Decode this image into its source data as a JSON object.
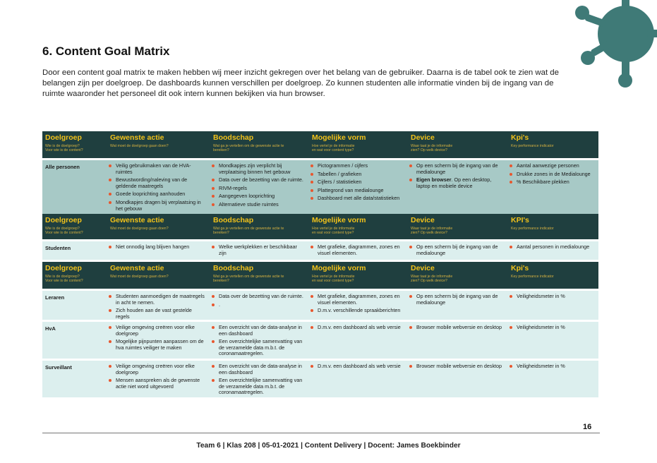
{
  "heading": "6. Content Goal Matrix",
  "intro": "Door een content goal matrix te maken hebben wij meer inzicht gekregen over het belang van de gebruiker. Daarna is de tabel ook te zien wat de belangen zijn per doelgroep. De dashboards kunnen verschillen per doelgroep. Zo kunnen studenten alle informatie vinden bij de ingang van de ruimte waaronder het personeel dit ook intern kunnen bekijken via hun browser.",
  "colors": {
    "header_bg": "#1f3f3f",
    "header_title": "#f2c21a",
    "row_teal": "#a7c9c6",
    "row_light": "#dcefee",
    "bullet": "#e8572e",
    "virus": "#3f7a77"
  },
  "tables": [
    {
      "header": [
        {
          "title": "Doelgroep",
          "sub": "Wie is de doelgroep?\nVoor wie is de content?"
        },
        {
          "title": "Gewenste actie",
          "sub": "Wat moet de doelgroep gaan doen?"
        },
        {
          "title": "Boodschap",
          "sub": "Wat ga je vertellen om de gewenste actie te\nbereiken?"
        },
        {
          "title": "Mogelijke vorm",
          "sub": "Hoe vertel je de informatie\nen wat voor content type?"
        },
        {
          "title": "Device",
          "sub": "Waar taat je de informatie\nzien? Op welk device?"
        },
        {
          "title": "Kpi's",
          "sub": "Key performance indicator"
        }
      ],
      "rows": [
        {
          "label": "Alle personen",
          "actie": [
            "Veilig gebruikmaken van de HVA-ruimtes",
            "Bewustwording/naleving van de geldende maatregels",
            "Goede looprichting aanhouden",
            "Mondkapjes dragen bij verplaatsing in het gebouw"
          ],
          "boodschap": [
            "Mondkapjes zijn verplicht bij verplaatsing binnen het gebouw",
            "Data over de bezetting van de ruimte.",
            "RIVM-regels",
            "Aangegeven looprichting",
            "Alternatieve studie ruimtes"
          ],
          "vorm": [
            "Pictogrammen / cijfers",
            "Tabellen / grafieken",
            "Cijfers / statistieken",
            "Plattegrond van medialounge",
            "Dashboard met alle data/statistieken"
          ],
          "device": [
            "Op een scherm bij de ingang van de medialounge"
          ],
          "device_bold": "Eigen browser",
          "device_rest": ". Op een desktop, laptop en mobiele device",
          "kpi": [
            "Aantal aanwezige personen",
            "Drukke zones in de Medialounge",
            "% Beschikbare plekken"
          ]
        }
      ]
    },
    {
      "header": [
        {
          "title": "Doelgroep",
          "sub": "Wie is de doelgroep?\nVoor wie is de content?"
        },
        {
          "title": "Gewenste actie",
          "sub": "Wat moet de doelgroep gaan doen?"
        },
        {
          "title": "Boodschap",
          "sub": "Wat ga je vertellen om de gewenste actie te\nbereiken?"
        },
        {
          "title": "Mogelijke vorm",
          "sub": "Hoe vertel je de informatie\nen wat voor content type?"
        },
        {
          "title": "Device",
          "sub": "Waar taat je de informatie\nzien? Op welk device?"
        },
        {
          "title": "KPI's",
          "sub": "Key performance indicator"
        }
      ],
      "rows": [
        {
          "label": "Studenten",
          "actie": [
            "Niet onnodig lang blijven hangen"
          ],
          "boodschap": [
            "Welke werkplekken er beschikbaar zijn"
          ],
          "vorm": [
            "Met grafieke, diagrammen, zones en visuel elementen."
          ],
          "device": [
            "Op een scherm bij de ingang van de medialounge"
          ],
          "kpi": [
            "Aantal personen in medialounge"
          ]
        }
      ]
    },
    {
      "header": [
        {
          "title": "Doelgroep",
          "sub": "Wie is de doelgroep?\nVoor wie is de content?"
        },
        {
          "title": "Gewenste actie",
          "sub": "Wat moet de doelgroep gaan doen?"
        },
        {
          "title": "Boodschap",
          "sub": "Wat ga je vertellen om de gewenste actie te\nbereiken?"
        },
        {
          "title": "Mogelijke vorm",
          "sub": "Hoe vertel je de informatie\nen wat voor content type?"
        },
        {
          "title": "Device",
          "sub": "Waar taat je de informatie\nzien? Op welk device?"
        },
        {
          "title": "Kpi's",
          "sub": "Key performance indicator"
        }
      ],
      "rows": [
        {
          "label": "Leraren",
          "actie": [
            "Studenten aanmoedigen de maatregels in acht te nemen.",
            "Zich houden aan de vast gestelde regels"
          ],
          "boodschap": [
            "Data over de bezetting van de ruimte.",
            "."
          ],
          "vorm": [
            "Met grafieke, diagrammen, zones en visuel elementen.",
            "D.m.v. verschillende spraakberichten"
          ],
          "device": [
            "Op een scherm bij de ingang van de medialounge"
          ],
          "kpi": [
            "Veiligheidsmeter in %"
          ]
        },
        {
          "label": "HvA",
          "actie": [
            "Veilige omgeving creëren voor elke doelgroep",
            "Mogelijke pijnpunten aanpassen om de hva ruimtes veiliger te maken"
          ],
          "boodschap": [
            "Een overzicht van de data-analyse in een dashboard",
            "Een overzichtelijke samenvatting van de verzamelde data m.b.t. de coronamaatregelen."
          ],
          "vorm": [
            "D.m.v. een dashboard als web versie"
          ],
          "device": [
            "Browser mobile webversie en desktop"
          ],
          "kpi": [
            "Veiligheidsmeter in %"
          ]
        },
        {
          "label": "Surveillant",
          "actie": [
            "Veilige omgeving creëren voor elke doelgroep",
            "Mensen aanspreken als de gewenste actie niet word uitgevoerd"
          ],
          "boodschap": [
            "Een overzicht van de data-analyse in een dashboard",
            "Een overzichtelijke samenvatting van de verzamelde data m.b.t. de coronamaatregelen."
          ],
          "vorm": [
            "D.m.v. een dashboard als web versie"
          ],
          "device": [
            "Browser mobile webversie en desktop"
          ],
          "kpi": [
            "Veiligheidsmeter in %"
          ]
        }
      ]
    }
  ],
  "page_number": "16",
  "footer": "Team 6 | Klas 208 | 05-01-2021 | Content Delivery | Docent: James Boekbinder"
}
